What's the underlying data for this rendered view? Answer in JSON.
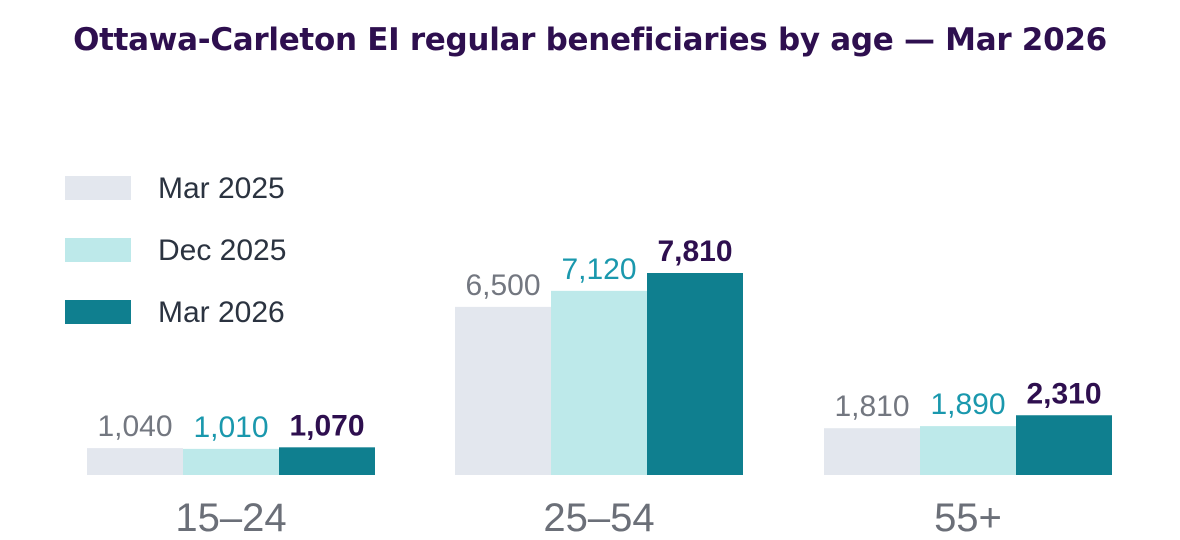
{
  "title": "Ottawa-Carleton EI regular beneficiaries by age — Mar 2026",
  "colors": {
    "Mar 2025": "#e3e7ee",
    "Dec 2025": "#bde9ea",
    "Mar 2026": "#0f7f8f",
    "label_Mar 2025": "#737780",
    "label_Dec 2025": "#1a98ad",
    "label_Mar 2026": "#2e0f4f"
  },
  "chart_data": {
    "type": "bar",
    "title": "Ottawa-Carleton EI regular beneficiaries by age — Mar 2026",
    "categories": [
      "15–24",
      "25–54",
      "55+"
    ],
    "series": [
      {
        "name": "Mar 2025",
        "values": [
          1040,
          6500,
          1810
        ],
        "labels": [
          "1,040",
          "6,500",
          "1,810"
        ]
      },
      {
        "name": "Dec 2025",
        "values": [
          1010,
          7120,
          1890
        ],
        "labels": [
          "1,010",
          "7,120",
          "1,890"
        ]
      },
      {
        "name": "Mar 2026",
        "values": [
          1070,
          7810,
          2310
        ],
        "labels": [
          "1,070",
          "7,810",
          "2,310"
        ]
      }
    ],
    "ylim": [
      0,
      7810
    ],
    "grid": false,
    "legend": "top-left"
  }
}
